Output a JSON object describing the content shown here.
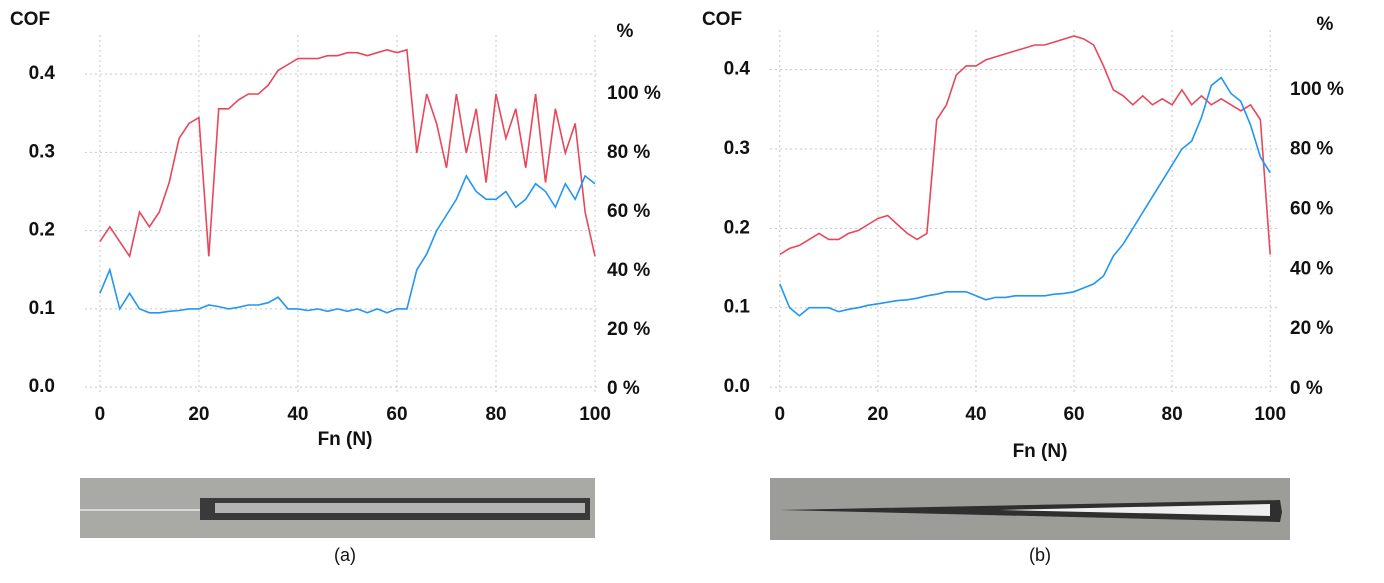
{
  "chart_data": [
    {
      "type": "line",
      "ylabel": "COF",
      "y2label": "%",
      "xlabel": "Fn (N)",
      "caption": "(a)",
      "grid": true,
      "x": [
        0,
        2,
        4,
        6,
        8,
        10,
        12,
        14,
        16,
        18,
        20,
        22,
        24,
        26,
        28,
        30,
        32,
        34,
        36,
        38,
        40,
        42,
        44,
        46,
        48,
        50,
        52,
        54,
        56,
        58,
        60,
        62,
        64,
        66,
        68,
        70,
        72,
        74,
        76,
        78,
        80,
        82,
        84,
        86,
        88,
        90,
        92,
        94,
        96,
        98,
        100
      ],
      "xlim": [
        -3,
        101
      ],
      "xticks": [
        0,
        20,
        40,
        60,
        80,
        100
      ],
      "ylim": [
        -0.01,
        0.45
      ],
      "yticks": [
        {
          "value": 0,
          "label": "0.0"
        },
        0.1,
        0.2,
        0.3,
        0.4
      ],
      "y2lim": [
        -2,
        120
      ],
      "y2ticks": [
        {
          "value": 0,
          "label": "0 %"
        },
        {
          "value": 20,
          "label": "20 %"
        },
        {
          "value": 40,
          "label": "40 %"
        },
        {
          "value": 60,
          "label": "60 %"
        },
        {
          "value": 80,
          "label": "80 %"
        },
        {
          "value": 100,
          "label": "100 %"
        }
      ],
      "series": [
        {
          "color": "#e8475a",
          "axis": "y2",
          "values": [
            50,
            55,
            50,
            45,
            60,
            55,
            60,
            70,
            85,
            90,
            92,
            45,
            95,
            95,
            98,
            100,
            100,
            103,
            108,
            110,
            112,
            112,
            112,
            113,
            113,
            114,
            114,
            113,
            114,
            115,
            114,
            115,
            80,
            100,
            90,
            75,
            100,
            80,
            95,
            70,
            100,
            85,
            95,
            75,
            100,
            70,
            95,
            80,
            90,
            60,
            45
          ]
        },
        {
          "color": "#2196f3",
          "axis": "y",
          "values": [
            0.12,
            0.15,
            0.1,
            0.12,
            0.1,
            0.095,
            0.095,
            0.097,
            0.098,
            0.1,
            0.1,
            0.105,
            0.103,
            0.1,
            0.102,
            0.105,
            0.105,
            0.108,
            0.115,
            0.1,
            0.1,
            0.098,
            0.1,
            0.097,
            0.1,
            0.097,
            0.1,
            0.095,
            0.1,
            0.095,
            0.1,
            0.1,
            0.15,
            0.17,
            0.2,
            0.22,
            0.24,
            0.27,
            0.25,
            0.24,
            0.24,
            0.25,
            0.23,
            0.24,
            0.26,
            0.25,
            0.23,
            0.26,
            0.24,
            0.27,
            0.26
          ]
        }
      ]
    },
    {
      "type": "line",
      "ylabel": "COF",
      "y2label": "%",
      "xlabel": "Fn (N)",
      "caption": "(b)",
      "grid": true,
      "x": [
        0,
        2,
        4,
        6,
        8,
        10,
        12,
        14,
        16,
        18,
        20,
        22,
        24,
        26,
        28,
        30,
        32,
        34,
        36,
        38,
        40,
        42,
        44,
        46,
        48,
        50,
        52,
        54,
        56,
        58,
        60,
        62,
        64,
        66,
        68,
        70,
        72,
        74,
        76,
        78,
        80,
        82,
        84,
        86,
        88,
        90,
        92,
        94,
        96,
        98,
        100
      ],
      "xlim": [
        -2,
        102
      ],
      "xticks": [
        0,
        20,
        40,
        60,
        80,
        100
      ],
      "ylim": [
        -0.01,
        0.45
      ],
      "yticks": [
        {
          "value": 0,
          "label": "0.0"
        },
        0.1,
        0.2,
        0.3,
        0.4
      ],
      "y2lim": [
        -2,
        120
      ],
      "y2ticks": [
        {
          "value": 0,
          "label": "0 %"
        },
        {
          "value": 20,
          "label": "20 %"
        },
        {
          "value": 40,
          "label": "40 %"
        },
        {
          "value": 60,
          "label": "60 %"
        },
        {
          "value": 80,
          "label": "80 %"
        },
        {
          "value": 100,
          "label": "100 %"
        }
      ],
      "series": [
        {
          "color": "#e8475a",
          "axis": "y2",
          "values": [
            45,
            47,
            48,
            50,
            52,
            50,
            50,
            52,
            53,
            55,
            57,
            58,
            55,
            52,
            50,
            52,
            90,
            95,
            105,
            108,
            108,
            110,
            111,
            112,
            113,
            114,
            115,
            115,
            116,
            117,
            118,
            117,
            115,
            108,
            100,
            98,
            95,
            98,
            95,
            97,
            95,
            100,
            95,
            98,
            95,
            97,
            95,
            93,
            95,
            90,
            45
          ]
        },
        {
          "color": "#2196f3",
          "axis": "y",
          "values": [
            0.13,
            0.1,
            0.09,
            0.1,
            0.1,
            0.1,
            0.095,
            0.098,
            0.1,
            0.103,
            0.105,
            0.107,
            0.109,
            0.11,
            0.112,
            0.115,
            0.117,
            0.12,
            0.12,
            0.12,
            0.115,
            0.11,
            0.113,
            0.113,
            0.115,
            0.115,
            0.115,
            0.115,
            0.117,
            0.118,
            0.12,
            0.125,
            0.13,
            0.14,
            0.165,
            0.18,
            0.2,
            0.22,
            0.24,
            0.26,
            0.28,
            0.3,
            0.31,
            0.34,
            0.38,
            0.39,
            0.37,
            0.36,
            0.33,
            0.29,
            0.27
          ]
        }
      ]
    }
  ]
}
